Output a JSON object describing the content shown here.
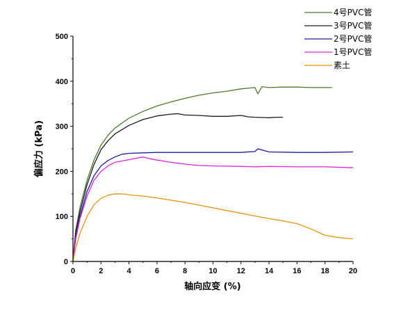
{
  "chart_data": {
    "type": "line",
    "title": "",
    "xlabel": "轴向应变 (%)",
    "ylabel": "偏应力 (kPa)",
    "xlim": [
      0,
      20
    ],
    "ylim": [
      0,
      500
    ],
    "xticks": [
      0,
      2,
      4,
      6,
      8,
      10,
      12,
      14,
      16,
      18,
      20
    ],
    "yticks": [
      0,
      100,
      200,
      300,
      400,
      500
    ],
    "grid": false,
    "legend_position": "top-right",
    "series": [
      {
        "name": "4号PVC管",
        "color": "#4a7a2a",
        "x": [
          0,
          0.2,
          0.5,
          1,
          1.5,
          2,
          2.5,
          3,
          4,
          5,
          6,
          7,
          8,
          9,
          10,
          11,
          12,
          13,
          13.2,
          13.5,
          14,
          15,
          16,
          17,
          18,
          18.5
        ],
        "y": [
          0,
          70,
          120,
          180,
          225,
          258,
          280,
          296,
          318,
          333,
          345,
          354,
          362,
          369,
          374,
          378,
          383,
          386,
          372,
          388,
          386,
          387,
          387,
          386,
          386,
          386
        ]
      },
      {
        "name": "3号PVC管",
        "color": "#1a1a1a",
        "x": [
          0,
          0.2,
          0.5,
          1,
          1.5,
          2,
          2.5,
          3,
          4,
          5,
          6,
          7,
          7.5,
          8,
          9,
          10,
          11,
          12,
          12.5,
          13,
          14,
          14.5,
          15
        ],
        "y": [
          0,
          65,
          110,
          170,
          215,
          248,
          268,
          283,
          302,
          315,
          323,
          327,
          328,
          325,
          324,
          322,
          322,
          324,
          321,
          320,
          319,
          320,
          320
        ]
      },
      {
        "name": "2号PVC管",
        "color": "#1a1aa0",
        "x": [
          0,
          0.2,
          0.5,
          1,
          1.5,
          2,
          2.5,
          3,
          3.5,
          4,
          5,
          6,
          8,
          10,
          12,
          13,
          13.2,
          14,
          16,
          18,
          20
        ],
        "y": [
          0,
          55,
          100,
          155,
          190,
          212,
          224,
          232,
          238,
          240,
          241,
          242,
          242,
          242,
          242,
          244,
          250,
          243,
          242,
          242,
          243
        ]
      },
      {
        "name": "1号PVC管",
        "color": "#e020e0",
        "x": [
          0,
          0.2,
          0.5,
          1,
          1.5,
          2,
          2.5,
          3,
          4,
          5,
          5.5,
          6,
          7,
          8,
          9,
          10,
          12,
          13,
          14,
          16,
          18,
          20
        ],
        "y": [
          0,
          50,
          95,
          145,
          180,
          200,
          212,
          220,
          226,
          232,
          228,
          225,
          220,
          216,
          213,
          212,
          211,
          210,
          211,
          210,
          210,
          208
        ]
      },
      {
        "name": "素土",
        "color": "#f0900a",
        "x": [
          0,
          0.2,
          0.5,
          1,
          1.5,
          2,
          2.5,
          3,
          3.5,
          4,
          5,
          6,
          7,
          8,
          9,
          10,
          11,
          12,
          13,
          14,
          15,
          16,
          17,
          18,
          19,
          20
        ],
        "y": [
          0,
          30,
          62,
          100,
          126,
          140,
          147,
          150,
          150,
          148,
          145,
          141,
          136,
          131,
          125,
          119,
          113,
          107,
          101,
          95,
          90,
          84,
          72,
          58,
          53,
          50
        ]
      }
    ]
  }
}
